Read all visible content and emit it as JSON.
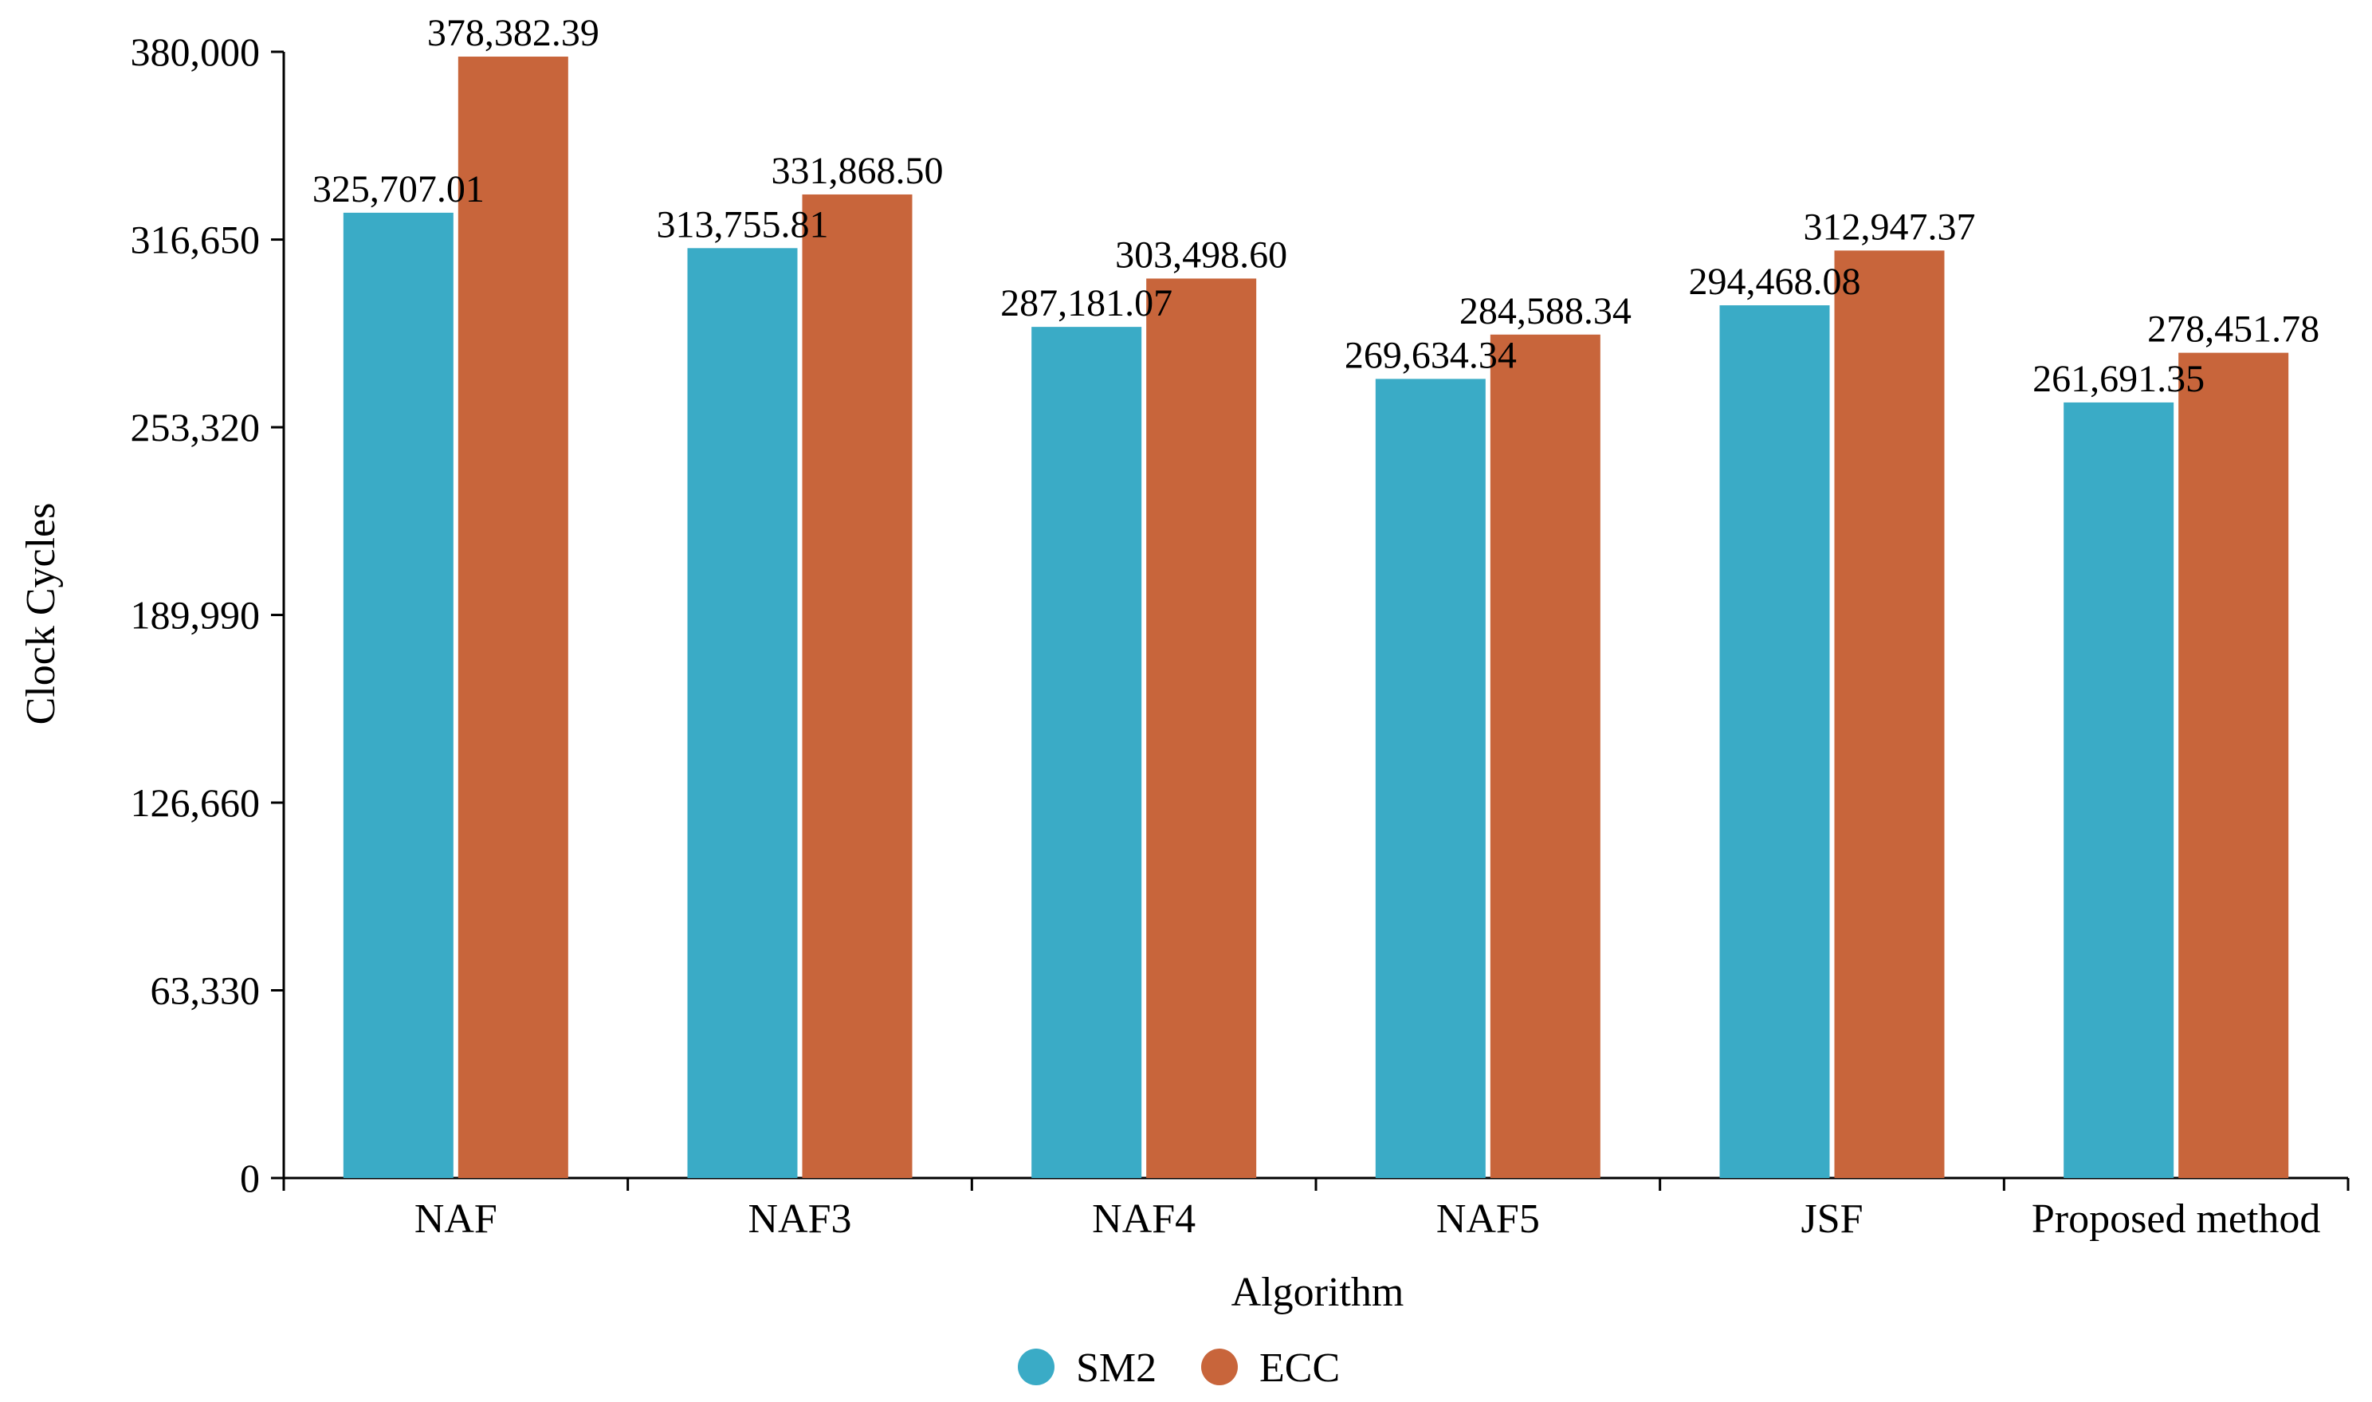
{
  "chart_data": {
    "type": "bar",
    "title": "",
    "xlabel": "Algorithm",
    "ylabel": "Clock Cycles",
    "ylim": [
      0,
      380000
    ],
    "yticks": [
      0,
      63330,
      126660,
      189990,
      253320,
      316650,
      380000
    ],
    "ytick_labels": [
      "0",
      "63,330",
      "126,660",
      "189,990",
      "253,320",
      "316,650",
      "380,000"
    ],
    "grid": false,
    "legend_position": "bottom-center",
    "categories": [
      "NAF",
      "NAF3",
      "NAF4",
      "NAF5",
      "JSF",
      "Proposed method"
    ],
    "series": [
      {
        "name": "SM2",
        "color": "#3aabc6",
        "values": [
          325707.01,
          313755.81,
          287181.07,
          269634.34,
          294468.08,
          261691.35
        ],
        "labels": [
          "325,707.01",
          "313,755.81",
          "287,181.07",
          "269,634.34",
          "294,468.08",
          "261,691.35"
        ]
      },
      {
        "name": "ECC",
        "color": "#c8653b",
        "values": [
          378382.39,
          331868.5,
          303498.6,
          284588.34,
          312947.37,
          278451.78
        ],
        "labels": [
          "378,382.39",
          "331,868.50",
          "303,498.60",
          "284,588.34",
          "312,947.37",
          "278,451.78"
        ]
      }
    ]
  }
}
